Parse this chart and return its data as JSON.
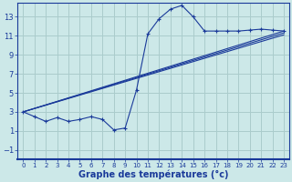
{
  "background_color": "#cce8e8",
  "grid_color": "#aacccc",
  "line_color": "#1a3a9a",
  "xlabel": "Graphe des températures (°c)",
  "xlabel_fontsize": 7,
  "tick_fontsize": 5.5,
  "xlim": [
    -0.5,
    23.5
  ],
  "ylim": [
    -2,
    14.5
  ],
  "yticks": [
    -1,
    1,
    3,
    5,
    7,
    9,
    11,
    13
  ],
  "xticks": [
    0,
    1,
    2,
    3,
    4,
    5,
    6,
    7,
    8,
    9,
    10,
    11,
    12,
    13,
    14,
    15,
    16,
    17,
    18,
    19,
    20,
    21,
    22,
    23
  ],
  "curve1_x": [
    0,
    1,
    2,
    3,
    4,
    5,
    6,
    7,
    8,
    9,
    10,
    11,
    12,
    13,
    14,
    15,
    16,
    17,
    18,
    19,
    20,
    21,
    22,
    23
  ],
  "curve1_y": [
    3.0,
    2.5,
    2.0,
    2.4,
    2.0,
    2.2,
    2.5,
    2.2,
    1.1,
    1.3,
    5.3,
    11.2,
    12.8,
    13.8,
    14.2,
    13.0,
    11.5,
    11.5,
    11.5,
    11.5,
    11.6,
    11.7,
    11.6,
    11.5
  ],
  "line1_x": [
    0,
    23
  ],
  "line1_y": [
    3.0,
    11.5
  ],
  "line2_x": [
    0,
    23
  ],
  "line2_y": [
    3.0,
    11.3
  ],
  "line3_x": [
    0,
    23
  ],
  "line3_y": [
    3.0,
    11.1
  ]
}
